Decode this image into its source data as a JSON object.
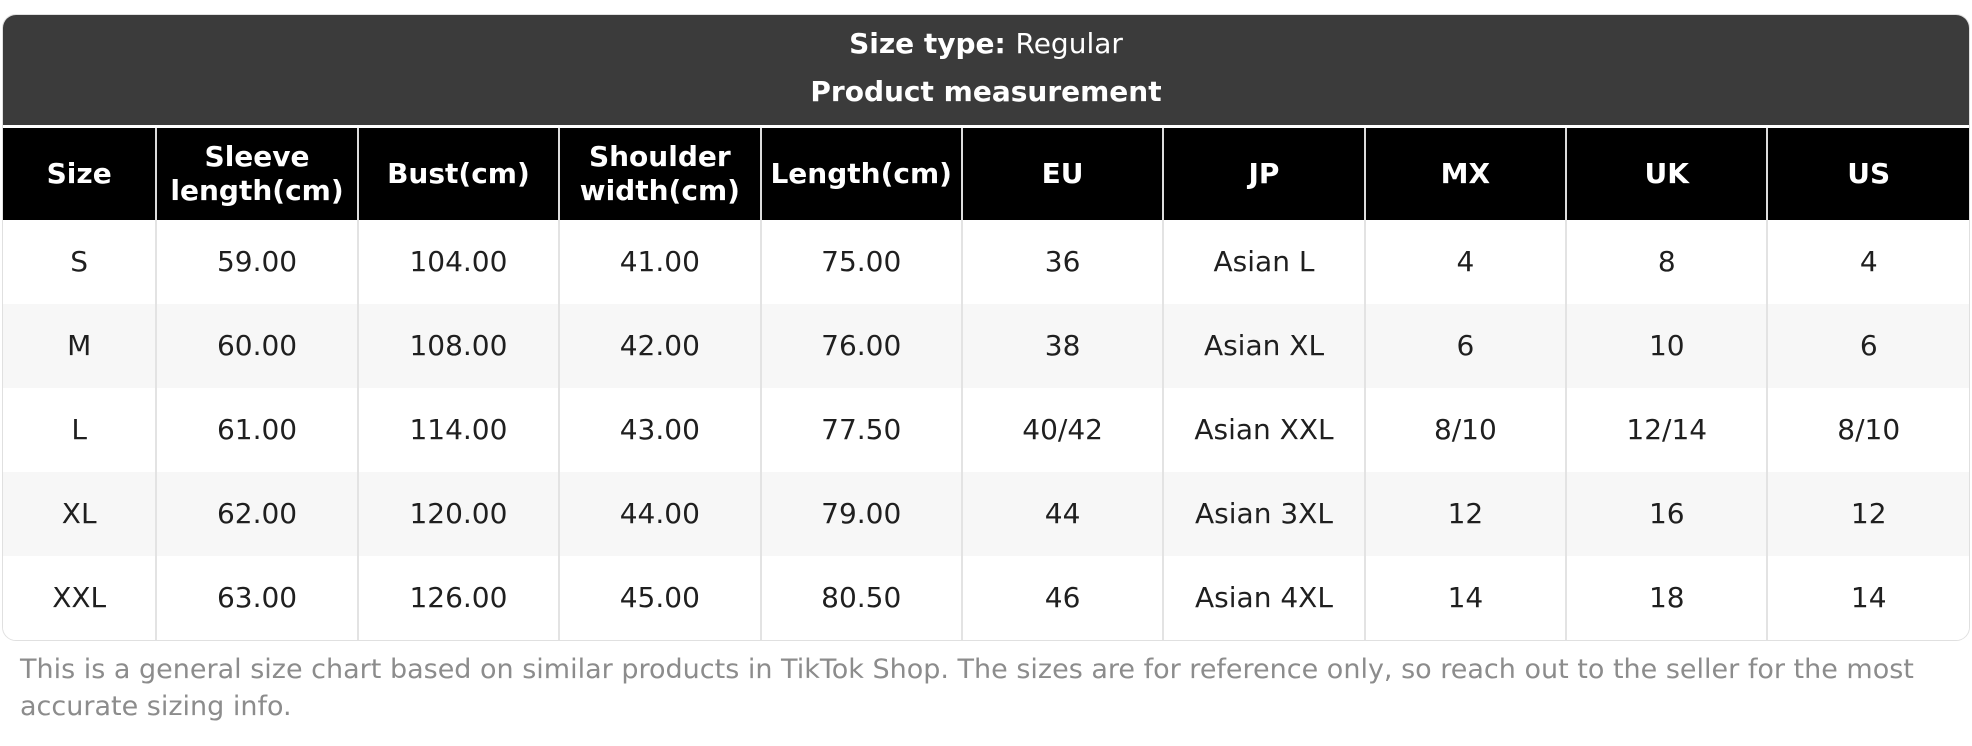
{
  "card": {
    "size_type_label": "Size type:",
    "size_type_value": "Regular",
    "subtitle": "Product measurement"
  },
  "table": {
    "columns": [
      "Size",
      "Sleeve length(cm)",
      "Bust(cm)",
      "Shoulder width(cm)",
      "Length(cm)",
      "EU",
      "JP",
      "MX",
      "UK",
      "US"
    ],
    "rows": [
      [
        "S",
        "59.00",
        "104.00",
        "41.00",
        "75.00",
        "36",
        "Asian L",
        "4",
        "8",
        "4"
      ],
      [
        "M",
        "60.00",
        "108.00",
        "42.00",
        "76.00",
        "38",
        "Asian XL",
        "6",
        "10",
        "6"
      ],
      [
        "L",
        "61.00",
        "114.00",
        "43.00",
        "77.50",
        "40/42",
        "Asian XXL",
        "8/10",
        "12/14",
        "8/10"
      ],
      [
        "XL",
        "62.00",
        "120.00",
        "44.00",
        "79.00",
        "44",
        "Asian 3XL",
        "12",
        "16",
        "12"
      ],
      [
        "XXL",
        "63.00",
        "126.00",
        "45.00",
        "80.50",
        "46",
        "Asian 4XL",
        "14",
        "18",
        "14"
      ]
    ]
  },
  "note": "This is a general size chart based on similar products in TikTok Shop. The sizes are for reference only, so reach out to the seller for the most accurate sizing info.",
  "colors": {
    "topbar_bg": "#3b3b3b",
    "header_bg": "#000000",
    "alt_row_bg": "#f7f7f7",
    "cell_border": "#e3e3e3",
    "note_text": "#8c8c8c"
  }
}
